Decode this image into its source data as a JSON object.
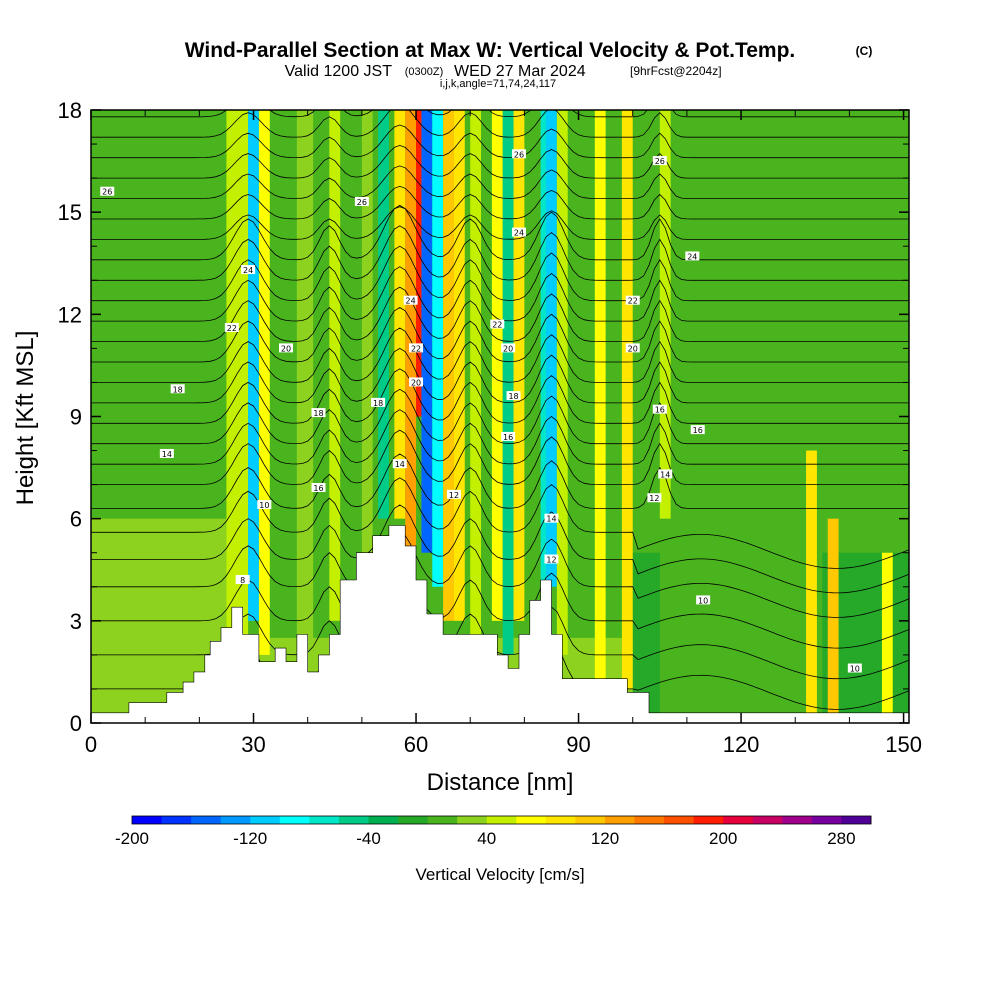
{
  "header": {
    "title": "Wind-Parallel Section at Max W: Vertical Velocity & Pot.Temp.",
    "copyright": "(C)",
    "valid_pre": "Valid 1200 JST",
    "valid_z": "(0300Z)",
    "valid_date": "WED 27 Mar 2024",
    "fcst": "[9hrFcst@2204z]",
    "ijk": "i,j,k,angle=71,74,24,117"
  },
  "chart_data": {
    "type": "heatmap",
    "xlabel": "Distance [nm]",
    "ylabel": "Height [Kft MSL]",
    "xlim": [
      0,
      151
    ],
    "ylim": [
      0,
      18
    ],
    "x_ticks": [
      0,
      30,
      60,
      90,
      120,
      150
    ],
    "y_ticks": [
      0,
      3,
      6,
      9,
      12,
      15,
      18
    ],
    "grid": false,
    "colorbar": {
      "label": "Vertical Velocity [cm/s]",
      "tick_labels": [
        -200,
        -120,
        -40,
        40,
        120,
        200,
        280
      ],
      "colors": [
        "#0000ff",
        "#0033ff",
        "#0066ff",
        "#0099ff",
        "#00ccff",
        "#00ffff",
        "#00e6c8",
        "#00cc88",
        "#00b050",
        "#26a828",
        "#4ab41e",
        "#8cd21e",
        "#c3f000",
        "#ffff00",
        "#ffe600",
        "#ffc800",
        "#ffa000",
        "#ff7800",
        "#ff5000",
        "#ff1e00",
        "#e6003c",
        "#c80064",
        "#a0008c",
        "#7800a0",
        "#500096"
      ]
    },
    "terrain_profile": [
      [
        0,
        0.3
      ],
      [
        7,
        0.3
      ],
      [
        7,
        0.6
      ],
      [
        14,
        0.6
      ],
      [
        14,
        0.9
      ],
      [
        17,
        0.9
      ],
      [
        17,
        1.2
      ],
      [
        19,
        1.2
      ],
      [
        19,
        1.5
      ],
      [
        21,
        1.5
      ],
      [
        21,
        2
      ],
      [
        22,
        2
      ],
      [
        22,
        2.4
      ],
      [
        24,
        2.4
      ],
      [
        24,
        2.8
      ],
      [
        26,
        2.8
      ],
      [
        26,
        3.4
      ],
      [
        28,
        3.4
      ],
      [
        28,
        2.6
      ],
      [
        31,
        2.6
      ],
      [
        31,
        1.8
      ],
      [
        34,
        1.8
      ],
      [
        34,
        2.2
      ],
      [
        36,
        2.2
      ],
      [
        36,
        1.8
      ],
      [
        38,
        1.8
      ],
      [
        38,
        2.6
      ],
      [
        40,
        2.6
      ],
      [
        40,
        1.5
      ],
      [
        42,
        1.5
      ],
      [
        42,
        2
      ],
      [
        44,
        2
      ],
      [
        44,
        2.6
      ],
      [
        46,
        2.6
      ],
      [
        46,
        4.2
      ],
      [
        49,
        4.2
      ],
      [
        49,
        5
      ],
      [
        52,
        5
      ],
      [
        52,
        5.5
      ],
      [
        55,
        5.5
      ],
      [
        55,
        5.8
      ],
      [
        58,
        5.8
      ],
      [
        58,
        5.2
      ],
      [
        60,
        5.2
      ],
      [
        60,
        4.2
      ],
      [
        62,
        4.2
      ],
      [
        62,
        3.2
      ],
      [
        65,
        3.2
      ],
      [
        65,
        2.6
      ],
      [
        75,
        2.6
      ],
      [
        75,
        2
      ],
      [
        77,
        2
      ],
      [
        77,
        1.6
      ],
      [
        79,
        1.6
      ],
      [
        79,
        2.6
      ],
      [
        81,
        2.6
      ],
      [
        81,
        3.6
      ],
      [
        83,
        3.6
      ],
      [
        83,
        4.2
      ],
      [
        85,
        4.2
      ],
      [
        85,
        2.6
      ],
      [
        87,
        2.6
      ],
      [
        87,
        1.3
      ],
      [
        99,
        1.3
      ],
      [
        99,
        0.9
      ],
      [
        103,
        0.9
      ],
      [
        103,
        0.3
      ],
      [
        151,
        0.3
      ]
    ],
    "theta_contour_labels": [
      {
        "label": "26",
        "x": 3,
        "y": 15.6
      },
      {
        "label": "26",
        "x": 50,
        "y": 15.3
      },
      {
        "label": "26",
        "x": 79,
        "y": 16.7
      },
      {
        "label": "26",
        "x": 105,
        "y": 16.5
      },
      {
        "label": "24",
        "x": 29,
        "y": 13.3
      },
      {
        "label": "24",
        "x": 79,
        "y": 14.4
      },
      {
        "label": "24",
        "x": 111,
        "y": 13.7
      },
      {
        "label": "24",
        "x": 59,
        "y": 12.4
      },
      {
        "label": "22",
        "x": 26,
        "y": 11.6
      },
      {
        "label": "22",
        "x": 75,
        "y": 11.7
      },
      {
        "label": "22",
        "x": 100,
        "y": 12.4
      },
      {
        "label": "22",
        "x": 60,
        "y": 11
      },
      {
        "label": "20",
        "x": 36,
        "y": 11
      },
      {
        "label": "20",
        "x": 77,
        "y": 11
      },
      {
        "label": "20",
        "x": 100,
        "y": 11
      },
      {
        "label": "20",
        "x": 60,
        "y": 10
      },
      {
        "label": "18",
        "x": 16,
        "y": 9.8
      },
      {
        "label": "18",
        "x": 53,
        "y": 9.4
      },
      {
        "label": "18",
        "x": 78,
        "y": 9.6
      },
      {
        "label": "18",
        "x": 42,
        "y": 9.1
      },
      {
        "label": "16",
        "x": 77,
        "y": 8.4
      },
      {
        "label": "16",
        "x": 112,
        "y": 8.6
      },
      {
        "label": "16",
        "x": 42,
        "y": 6.9
      },
      {
        "label": "16",
        "x": 105,
        "y": 9.2
      },
      {
        "label": "14",
        "x": 14,
        "y": 7.9
      },
      {
        "label": "14",
        "x": 57,
        "y": 7.6
      },
      {
        "label": "14",
        "x": 106,
        "y": 7.3
      },
      {
        "label": "14",
        "x": 85,
        "y": 6
      },
      {
        "label": "12",
        "x": 67,
        "y": 6.7
      },
      {
        "label": "12",
        "x": 104,
        "y": 6.6
      },
      {
        "label": "12",
        "x": 85,
        "y": 4.8
      },
      {
        "label": "10",
        "x": 32,
        "y": 6.4
      },
      {
        "label": "10",
        "x": 113,
        "y": 3.6
      },
      {
        "label": "10",
        "x": 141,
        "y": 1.6
      },
      {
        "label": "8",
        "x": 28,
        "y": 4.2
      }
    ]
  }
}
